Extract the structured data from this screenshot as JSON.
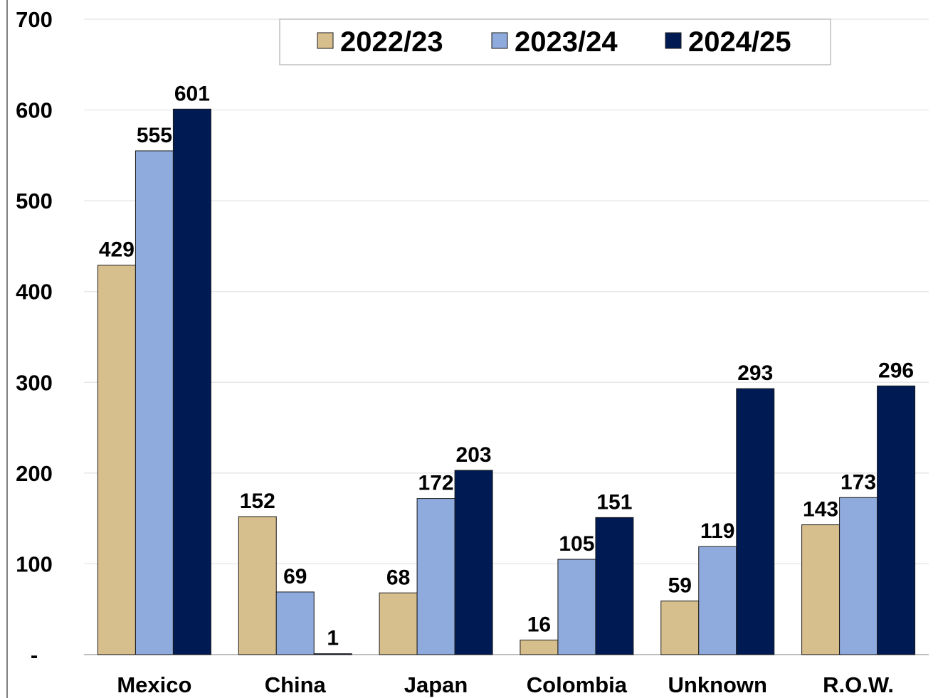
{
  "chart_data": {
    "type": "bar",
    "categories": [
      "Mexico",
      "China",
      "Japan",
      "Colombia",
      "Unknown",
      "R.O.W."
    ],
    "series": [
      {
        "name": "2022/23",
        "color": "#D7BE8D",
        "values": [
          429,
          152,
          68,
          16,
          59,
          143
        ]
      },
      {
        "name": "2023/24",
        "color": "#8FAADC",
        "values": [
          555,
          69,
          172,
          105,
          119,
          173
        ]
      },
      {
        "name": "2024/25",
        "color": "#001B54",
        "values": [
          601,
          1,
          203,
          151,
          293,
          296
        ]
      }
    ],
    "yticks": [
      "-",
      "100",
      "200",
      "300",
      "400",
      "500",
      "600",
      "700"
    ],
    "ylim": [
      0,
      700
    ],
    "grid": true,
    "legend_position": "top-center",
    "title": "",
    "xlabel": "",
    "ylabel": ""
  }
}
